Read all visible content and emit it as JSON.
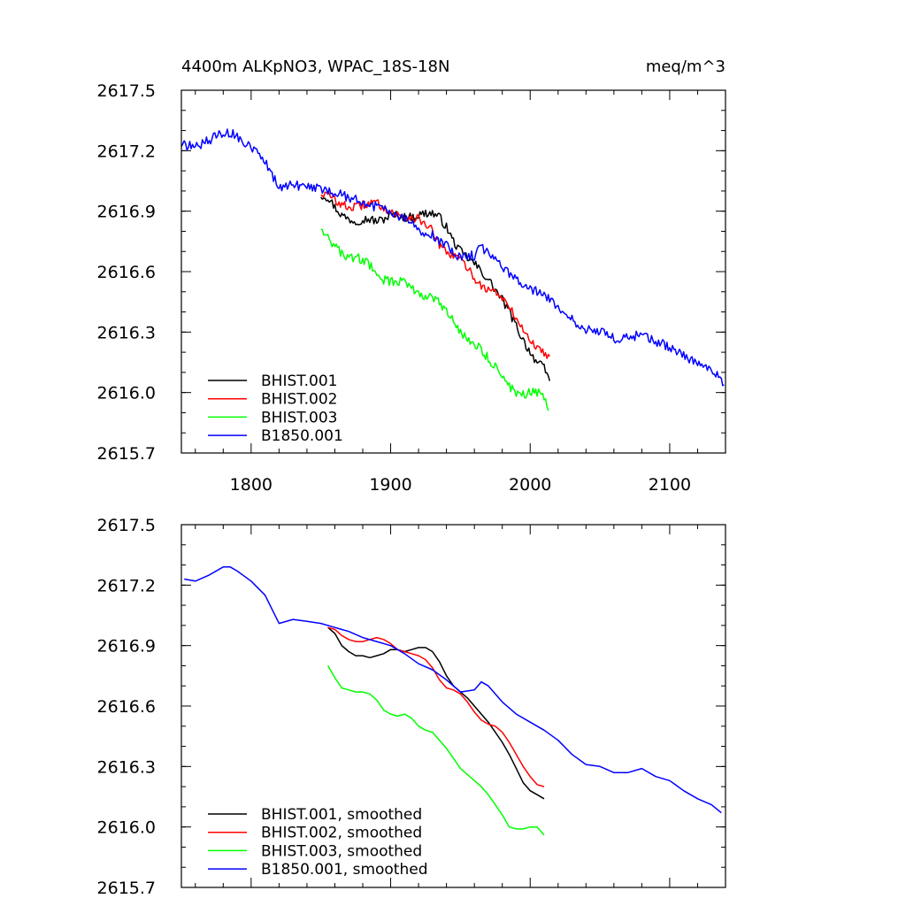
{
  "chart_data": [
    {
      "type": "line",
      "title_left": "4400m ALKpNO3, WPAC_18S-18N",
      "title_right": "meq/m^3",
      "xlim": [
        1750,
        2140
      ],
      "ylim": [
        2615.7,
        2617.5
      ],
      "xticks": [
        1800,
        1900,
        2000,
        2100
      ],
      "xtick_labels": [
        "1800",
        "1900",
        "2000",
        "2100"
      ],
      "yticks": [
        2615.7,
        2616.0,
        2616.3,
        2616.6,
        2616.9,
        2617.2,
        2617.5
      ],
      "ytick_labels": [
        "2615.7",
        "2616.0",
        "2616.3",
        "2616.6",
        "2616.9",
        "2617.2",
        "2617.5"
      ],
      "legend_position": "bottom-left",
      "series": [
        {
          "name": "BHIST.001",
          "color": "#000000",
          "noise": 0.022,
          "x": [
            1850,
            1855,
            1860,
            1865,
            1870,
            1875,
            1880,
            1885,
            1890,
            1895,
            1900,
            1905,
            1910,
            1915,
            1920,
            1925,
            1930,
            1935,
            1940,
            1945,
            1950,
            1955,
            1960,
            1965,
            1970,
            1975,
            1980,
            1985,
            1990,
            1995,
            2000,
            2005,
            2010,
            2014
          ],
          "y": [
            2616.98,
            2616.97,
            2616.92,
            2616.88,
            2616.86,
            2616.85,
            2616.86,
            2616.86,
            2616.85,
            2616.86,
            2616.88,
            2616.88,
            2616.87,
            2616.87,
            2616.88,
            2616.89,
            2616.89,
            2616.87,
            2616.82,
            2616.75,
            2616.7,
            2616.67,
            2616.64,
            2616.6,
            2616.56,
            2616.51,
            2616.46,
            2616.4,
            2616.33,
            2616.26,
            2616.2,
            2616.15,
            2616.12,
            2616.06
          ]
        },
        {
          "name": "BHIST.002",
          "color": "#ff0000",
          "noise": 0.022,
          "x": [
            1850,
            1855,
            1860,
            1865,
            1870,
            1875,
            1880,
            1885,
            1890,
            1895,
            1900,
            1905,
            1910,
            1915,
            1920,
            1925,
            1930,
            1935,
            1940,
            1945,
            1950,
            1955,
            1960,
            1965,
            1970,
            1975,
            1980,
            1985,
            1990,
            1995,
            2000,
            2005,
            2010,
            2014
          ],
          "y": [
            2616.99,
            2616.98,
            2616.96,
            2616.93,
            2616.92,
            2616.92,
            2616.93,
            2616.94,
            2616.94,
            2616.92,
            2616.9,
            2616.88,
            2616.87,
            2616.87,
            2616.86,
            2616.84,
            2616.8,
            2616.73,
            2616.69,
            2616.68,
            2616.66,
            2616.62,
            2616.57,
            2616.53,
            2616.51,
            2616.5,
            2616.47,
            2616.42,
            2616.37,
            2616.31,
            2616.26,
            2616.22,
            2616.2,
            2616.18
          ]
        },
        {
          "name": "BHIST.003",
          "color": "#00ff00",
          "noise": 0.024,
          "x": [
            1850,
            1855,
            1860,
            1865,
            1870,
            1875,
            1880,
            1885,
            1890,
            1895,
            1900,
            1905,
            1910,
            1915,
            1920,
            1925,
            1930,
            1935,
            1940,
            1945,
            1950,
            1955,
            1960,
            1965,
            1970,
            1975,
            1980,
            1985,
            1990,
            1995,
            2000,
            2005,
            2010,
            2013
          ],
          "y": [
            2616.82,
            2616.78,
            2616.72,
            2616.69,
            2616.67,
            2616.67,
            2616.66,
            2616.63,
            2616.59,
            2616.56,
            2616.55,
            2616.55,
            2616.55,
            2616.53,
            2616.49,
            2616.48,
            2616.47,
            2616.44,
            2616.4,
            2616.35,
            2616.3,
            2616.27,
            2616.24,
            2616.21,
            2616.17,
            2616.13,
            2616.08,
            2616.03,
            2616.0,
            2615.99,
            2616.0,
            2616.0,
            2615.98,
            2615.91
          ]
        },
        {
          "name": "B1850.001",
          "color": "#0000ff",
          "noise": 0.024,
          "x": [
            1750,
            1760,
            1770,
            1780,
            1785,
            1790,
            1800,
            1810,
            1815,
            1820,
            1830,
            1840,
            1850,
            1860,
            1870,
            1880,
            1890,
            1900,
            1910,
            1920,
            1930,
            1940,
            1950,
            1960,
            1965,
            1970,
            1980,
            1990,
            2000,
            2010,
            2020,
            2030,
            2040,
            2050,
            2060,
            2070,
            2080,
            2090,
            2100,
            2110,
            2120,
            2130,
            2139
          ],
          "y": [
            2617.23,
            2617.22,
            2617.25,
            2617.29,
            2617.29,
            2617.27,
            2617.22,
            2617.15,
            2617.08,
            2617.01,
            2617.03,
            2617.02,
            2617.01,
            2616.99,
            2616.97,
            2616.94,
            2616.92,
            2616.9,
            2616.86,
            2616.81,
            2616.78,
            2616.73,
            2616.67,
            2616.68,
            2616.72,
            2616.7,
            2616.62,
            2616.56,
            2616.52,
            2616.48,
            2616.43,
            2616.36,
            2616.31,
            2616.3,
            2616.27,
            2616.27,
            2616.29,
            2616.25,
            2616.23,
            2616.18,
            2616.14,
            2616.11,
            2616.05
          ]
        }
      ]
    },
    {
      "type": "line",
      "xlim": [
        1750,
        2140
      ],
      "ylim": [
        2615.7,
        2617.5
      ],
      "xticks": [
        1800,
        1900,
        2000,
        2100
      ],
      "yticks": [
        2615.7,
        2616.0,
        2616.3,
        2616.6,
        2616.9,
        2617.2,
        2617.5
      ],
      "ytick_labels": [
        "2615.7",
        "2616.0",
        "2616.3",
        "2616.6",
        "2616.9",
        "2617.2",
        "2617.5"
      ],
      "legend_position": "bottom-left",
      "series": [
        {
          "name": "BHIST.001, smoothed",
          "color": "#000000",
          "x": [
            1855,
            1860,
            1865,
            1870,
            1875,
            1880,
            1885,
            1890,
            1895,
            1900,
            1905,
            1910,
            1915,
            1920,
            1925,
            1930,
            1935,
            1940,
            1945,
            1950,
            1955,
            1960,
            1965,
            1970,
            1975,
            1980,
            1985,
            1990,
            1995,
            2000,
            2005,
            2010
          ],
          "y": [
            2616.99,
            2616.96,
            2616.9,
            2616.87,
            2616.85,
            2616.85,
            2616.84,
            2616.85,
            2616.86,
            2616.88,
            2616.88,
            2616.87,
            2616.88,
            2616.89,
            2616.89,
            2616.87,
            2616.82,
            2616.75,
            2616.7,
            2616.67,
            2616.64,
            2616.6,
            2616.56,
            2616.52,
            2616.47,
            2616.42,
            2616.36,
            2616.29,
            2616.22,
            2616.18,
            2616.16,
            2616.14
          ]
        },
        {
          "name": "BHIST.002, smoothed",
          "color": "#ff0000",
          "x": [
            1855,
            1860,
            1865,
            1870,
            1875,
            1880,
            1885,
            1890,
            1895,
            1900,
            1905,
            1910,
            1915,
            1920,
            1925,
            1930,
            1935,
            1940,
            1945,
            1950,
            1955,
            1960,
            1965,
            1970,
            1975,
            1980,
            1985,
            1990,
            1995,
            2000,
            2005,
            2010
          ],
          "y": [
            2616.99,
            2616.98,
            2616.95,
            2616.93,
            2616.92,
            2616.92,
            2616.93,
            2616.94,
            2616.93,
            2616.91,
            2616.88,
            2616.87,
            2616.86,
            2616.85,
            2616.83,
            2616.79,
            2616.73,
            2616.69,
            2616.68,
            2616.66,
            2616.62,
            2616.57,
            2616.53,
            2616.51,
            2616.5,
            2616.47,
            2616.42,
            2616.36,
            2616.3,
            2616.25,
            2616.21,
            2616.2
          ]
        },
        {
          "name": "BHIST.003, smoothed",
          "color": "#00ff00",
          "x": [
            1855,
            1860,
            1865,
            1870,
            1875,
            1880,
            1885,
            1890,
            1895,
            1900,
            1905,
            1910,
            1915,
            1920,
            1925,
            1930,
            1935,
            1940,
            1945,
            1950,
            1955,
            1960,
            1965,
            1970,
            1975,
            1980,
            1985,
            1990,
            1995,
            2000,
            2005,
            2010
          ],
          "y": [
            2616.8,
            2616.74,
            2616.69,
            2616.68,
            2616.67,
            2616.67,
            2616.66,
            2616.63,
            2616.58,
            2616.56,
            2616.55,
            2616.56,
            2616.54,
            2616.5,
            2616.48,
            2616.47,
            2616.43,
            2616.39,
            2616.34,
            2616.29,
            2616.26,
            2616.23,
            2616.2,
            2616.16,
            2616.11,
            2616.06,
            2616.0,
            2615.99,
            2615.99,
            2616.0,
            2616.0,
            2615.96
          ]
        },
        {
          "name": "B1850.001, smoothed",
          "color": "#0000ff",
          "x": [
            1752,
            1760,
            1770,
            1780,
            1785,
            1790,
            1800,
            1810,
            1815,
            1820,
            1830,
            1840,
            1850,
            1860,
            1870,
            1880,
            1890,
            1900,
            1910,
            1920,
            1930,
            1940,
            1950,
            1960,
            1965,
            1970,
            1980,
            1990,
            2000,
            2010,
            2020,
            2030,
            2040,
            2050,
            2060,
            2070,
            2080,
            2090,
            2100,
            2110,
            2120,
            2130,
            2137
          ],
          "y": [
            2617.23,
            2617.22,
            2617.25,
            2617.29,
            2617.29,
            2617.27,
            2617.22,
            2617.15,
            2617.08,
            2617.01,
            2617.03,
            2617.02,
            2617.01,
            2616.99,
            2616.97,
            2616.94,
            2616.92,
            2616.9,
            2616.86,
            2616.81,
            2616.78,
            2616.73,
            2616.67,
            2616.68,
            2616.72,
            2616.7,
            2616.62,
            2616.56,
            2616.52,
            2616.48,
            2616.43,
            2616.36,
            2616.31,
            2616.3,
            2616.27,
            2616.27,
            2616.29,
            2616.25,
            2616.23,
            2616.18,
            2616.14,
            2616.11,
            2616.07
          ]
        }
      ]
    }
  ]
}
